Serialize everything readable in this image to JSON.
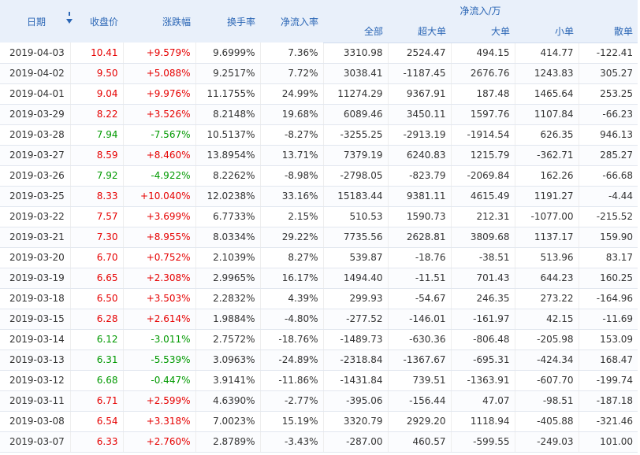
{
  "header": {
    "date": "日期",
    "close": "收盘价",
    "change": "涨跌幅",
    "turnover": "换手率",
    "net_rate": "净流入率",
    "net_group": "净流入/万",
    "net_all": "全部",
    "net_super": "超大单",
    "net_big": "大单",
    "net_small": "小单",
    "net_retail": "散单"
  },
  "colors": {
    "up": "#e60000",
    "down": "#009900",
    "header_bg": "#e9f0fa",
    "header_text": "#2b66b5"
  },
  "rows": [
    {
      "date": "2019-04-03",
      "close": "10.41",
      "change": "+9.579%",
      "turnover": "9.6999%",
      "net_rate": "7.36%",
      "all": "3310.98",
      "super": "2524.47",
      "big": "494.15",
      "small": "414.77",
      "retail": "-122.41",
      "dir": "up"
    },
    {
      "date": "2019-04-02",
      "close": "9.50",
      "change": "+5.088%",
      "turnover": "9.2517%",
      "net_rate": "7.72%",
      "all": "3038.41",
      "super": "-1187.45",
      "big": "2676.76",
      "small": "1243.83",
      "retail": "305.27",
      "dir": "up"
    },
    {
      "date": "2019-04-01",
      "close": "9.04",
      "change": "+9.976%",
      "turnover": "11.1755%",
      "net_rate": "24.99%",
      "all": "11274.29",
      "super": "9367.91",
      "big": "187.48",
      "small": "1465.64",
      "retail": "253.25",
      "dir": "up"
    },
    {
      "date": "2019-03-29",
      "close": "8.22",
      "change": "+3.526%",
      "turnover": "8.2148%",
      "net_rate": "19.68%",
      "all": "6089.46",
      "super": "3450.11",
      "big": "1597.76",
      "small": "1107.84",
      "retail": "-66.23",
      "dir": "up"
    },
    {
      "date": "2019-03-28",
      "close": "7.94",
      "change": "-7.567%",
      "turnover": "10.5137%",
      "net_rate": "-8.27%",
      "all": "-3255.25",
      "super": "-2913.19",
      "big": "-1914.54",
      "small": "626.35",
      "retail": "946.13",
      "dir": "down"
    },
    {
      "date": "2019-03-27",
      "close": "8.59",
      "change": "+8.460%",
      "turnover": "13.8954%",
      "net_rate": "13.71%",
      "all": "7379.19",
      "super": "6240.83",
      "big": "1215.79",
      "small": "-362.71",
      "retail": "285.27",
      "dir": "up"
    },
    {
      "date": "2019-03-26",
      "close": "7.92",
      "change": "-4.922%",
      "turnover": "8.2262%",
      "net_rate": "-8.98%",
      "all": "-2798.05",
      "super": "-823.79",
      "big": "-2069.84",
      "small": "162.26",
      "retail": "-66.68",
      "dir": "down"
    },
    {
      "date": "2019-03-25",
      "close": "8.33",
      "change": "+10.040%",
      "turnover": "12.0238%",
      "net_rate": "33.16%",
      "all": "15183.44",
      "super": "9381.11",
      "big": "4615.49",
      "small": "1191.27",
      "retail": "-4.44",
      "dir": "up"
    },
    {
      "date": "2019-03-22",
      "close": "7.57",
      "change": "+3.699%",
      "turnover": "6.7733%",
      "net_rate": "2.15%",
      "all": "510.53",
      "super": "1590.73",
      "big": "212.31",
      "small": "-1077.00",
      "retail": "-215.52",
      "dir": "up"
    },
    {
      "date": "2019-03-21",
      "close": "7.30",
      "change": "+8.955%",
      "turnover": "8.0334%",
      "net_rate": "29.22%",
      "all": "7735.56",
      "super": "2628.81",
      "big": "3809.68",
      "small": "1137.17",
      "retail": "159.90",
      "dir": "up"
    },
    {
      "date": "2019-03-20",
      "close": "6.70",
      "change": "+0.752%",
      "turnover": "2.1039%",
      "net_rate": "8.27%",
      "all": "539.87",
      "super": "-18.76",
      "big": "-38.51",
      "small": "513.96",
      "retail": "83.17",
      "dir": "up"
    },
    {
      "date": "2019-03-19",
      "close": "6.65",
      "change": "+2.308%",
      "turnover": "2.9965%",
      "net_rate": "16.17%",
      "all": "1494.40",
      "super": "-11.51",
      "big": "701.43",
      "small": "644.23",
      "retail": "160.25",
      "dir": "up"
    },
    {
      "date": "2019-03-18",
      "close": "6.50",
      "change": "+3.503%",
      "turnover": "2.2832%",
      "net_rate": "4.39%",
      "all": "299.93",
      "super": "-54.67",
      "big": "246.35",
      "small": "273.22",
      "retail": "-164.96",
      "dir": "up"
    },
    {
      "date": "2019-03-15",
      "close": "6.28",
      "change": "+2.614%",
      "turnover": "1.9884%",
      "net_rate": "-4.80%",
      "all": "-277.52",
      "super": "-146.01",
      "big": "-161.97",
      "small": "42.15",
      "retail": "-11.69",
      "dir": "up"
    },
    {
      "date": "2019-03-14",
      "close": "6.12",
      "change": "-3.011%",
      "turnover": "2.7572%",
      "net_rate": "-18.76%",
      "all": "-1489.73",
      "super": "-630.36",
      "big": "-806.48",
      "small": "-205.98",
      "retail": "153.09",
      "dir": "down"
    },
    {
      "date": "2019-03-13",
      "close": "6.31",
      "change": "-5.539%",
      "turnover": "3.0963%",
      "net_rate": "-24.89%",
      "all": "-2318.84",
      "super": "-1367.67",
      "big": "-695.31",
      "small": "-424.34",
      "retail": "168.47",
      "dir": "down"
    },
    {
      "date": "2019-03-12",
      "close": "6.68",
      "change": "-0.447%",
      "turnover": "3.9141%",
      "net_rate": "-11.86%",
      "all": "-1431.84",
      "super": "739.51",
      "big": "-1363.91",
      "small": "-607.70",
      "retail": "-199.74",
      "dir": "down"
    },
    {
      "date": "2019-03-11",
      "close": "6.71",
      "change": "+2.599%",
      "turnover": "4.6390%",
      "net_rate": "-2.77%",
      "all": "-395.06",
      "super": "-156.44",
      "big": "47.07",
      "small": "-98.51",
      "retail": "-187.18",
      "dir": "up"
    },
    {
      "date": "2019-03-08",
      "close": "6.54",
      "change": "+3.318%",
      "turnover": "7.0023%",
      "net_rate": "15.19%",
      "all": "3320.79",
      "super": "2929.20",
      "big": "1118.94",
      "small": "-405.88",
      "retail": "-321.46",
      "dir": "up"
    },
    {
      "date": "2019-03-07",
      "close": "6.33",
      "change": "+2.760%",
      "turnover": "2.8789%",
      "net_rate": "-3.43%",
      "all": "-287.00",
      "super": "460.57",
      "big": "-599.55",
      "small": "-249.03",
      "retail": "101.00",
      "dir": "up"
    }
  ]
}
